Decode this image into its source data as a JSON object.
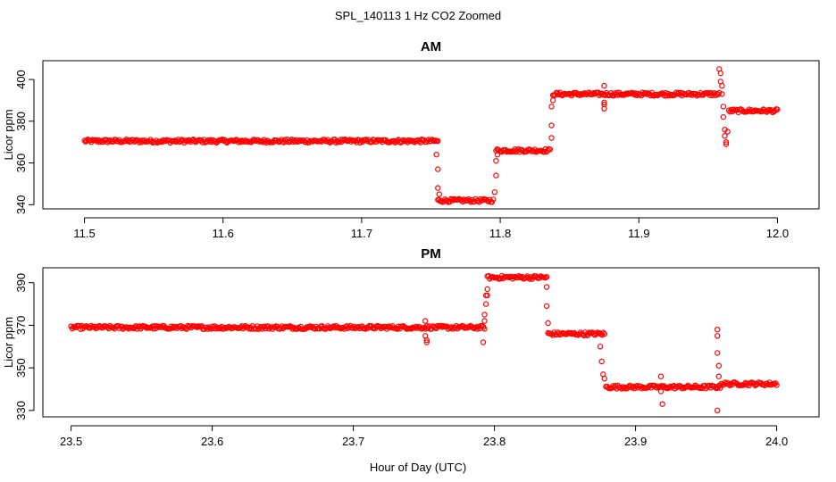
{
  "figure": {
    "title": "SPL_140113  1 Hz CO2 Zoomed",
    "xlabel": "Hour of Day (UTC)"
  },
  "colors": {
    "points": "#ff0000",
    "axes": "#000000",
    "background": "#ffffff"
  },
  "chart_data": [
    {
      "type": "scatter",
      "title": "AM",
      "xlabel": "",
      "ylabel": "Licor ppm",
      "xlim": [
        11.47,
        12.03
      ],
      "ylim": [
        338,
        409
      ],
      "xticks": [
        11.5,
        11.6,
        11.7,
        11.8,
        11.9,
        12.0
      ],
      "xtick_labels": [
        "11.5",
        "11.6",
        "11.7",
        "11.8",
        "11.9",
        "12.0"
      ],
      "yticks": [
        340,
        360,
        380,
        400
      ],
      "ytick_labels": [
        "340",
        "360",
        "380",
        "400"
      ],
      "series": [
        {
          "name": "CO2",
          "segments": [
            {
              "x_start": 11.5,
              "x_end": 11.755,
              "y": 370.5
            },
            {
              "x_start": 11.755,
              "x_end": 11.795,
              "y": 342
            },
            {
              "x_start": 11.797,
              "x_end": 11.836,
              "y": 366
            },
            {
              "x_start": 11.838,
              "x_end": 11.958,
              "y": 393
            },
            {
              "x_start": 11.965,
              "x_end": 12.0,
              "y": 385
            }
          ],
          "transition_points": [
            [
              11.754,
              364
            ],
            [
              11.755,
              357
            ],
            [
              11.755,
              348
            ],
            [
              11.756,
              345
            ],
            [
              11.796,
              346
            ],
            [
              11.797,
              354
            ],
            [
              11.797,
              361
            ],
            [
              11.798,
              364
            ],
            [
              11.837,
              372
            ],
            [
              11.837,
              378
            ],
            [
              11.837,
              387
            ],
            [
              11.838,
              390
            ],
            [
              11.875,
              397
            ],
            [
              11.875,
              389
            ],
            [
              11.875,
              386
            ],
            [
              11.875,
              388
            ],
            [
              11.958,
              405
            ],
            [
              11.959,
              403
            ],
            [
              11.959,
              399
            ],
            [
              11.96,
              397
            ],
            [
              11.96,
              393
            ],
            [
              11.961,
              387
            ],
            [
              11.961,
              382
            ],
            [
              11.962,
              376
            ],
            [
              11.962,
              373
            ],
            [
              11.963,
              370
            ],
            [
              11.963,
              369
            ],
            [
              11.964,
              375
            ]
          ]
        }
      ]
    },
    {
      "type": "scatter",
      "title": "PM",
      "xlabel": "Hour of Day (UTC)",
      "ylabel": "Licor ppm",
      "xlim": [
        23.48,
        24.03
      ],
      "ylim": [
        327,
        397
      ],
      "xticks": [
        23.5,
        23.6,
        23.7,
        23.8,
        23.9,
        24.0
      ],
      "xtick_labels": [
        "23.5",
        "23.6",
        "23.7",
        "23.8",
        "23.9",
        "24.0"
      ],
      "yticks": [
        330,
        350,
        370,
        390
      ],
      "ytick_labels": [
        "330",
        "350",
        "370",
        "390"
      ],
      "series": [
        {
          "name": "CO2",
          "segments": [
            {
              "x_start": 23.5,
              "x_end": 23.793,
              "y": 369
            },
            {
              "x_start": 23.795,
              "x_end": 23.837,
              "y": 392.5
            },
            {
              "x_start": 23.838,
              "x_end": 23.878,
              "y": 366
            },
            {
              "x_start": 23.879,
              "x_end": 23.96,
              "y": 341
            },
            {
              "x_start": 23.96,
              "x_end": 24.0,
              "y": 342.5
            }
          ],
          "transition_points": [
            [
              23.751,
              372
            ],
            [
              23.751,
              365
            ],
            [
              23.752,
              363
            ],
            [
              23.752,
              362
            ],
            [
              23.792,
              362
            ],
            [
              23.793,
              372
            ],
            [
              23.793,
              375
            ],
            [
              23.794,
              380
            ],
            [
              23.794,
              384
            ],
            [
              23.795,
              387
            ],
            [
              23.795,
              384
            ],
            [
              23.837,
              388
            ],
            [
              23.837,
              379
            ],
            [
              23.838,
              371
            ],
            [
              23.875,
              360
            ],
            [
              23.876,
              353
            ],
            [
              23.877,
              347
            ],
            [
              23.878,
              345
            ],
            [
              23.918,
              346
            ],
            [
              23.918,
              339
            ],
            [
              23.919,
              333
            ],
            [
              23.958,
              368
            ],
            [
              23.958,
              365
            ],
            [
              23.958,
              357
            ],
            [
              23.959,
              351
            ],
            [
              23.959,
              346
            ],
            [
              23.958,
              330
            ]
          ]
        }
      ]
    }
  ]
}
